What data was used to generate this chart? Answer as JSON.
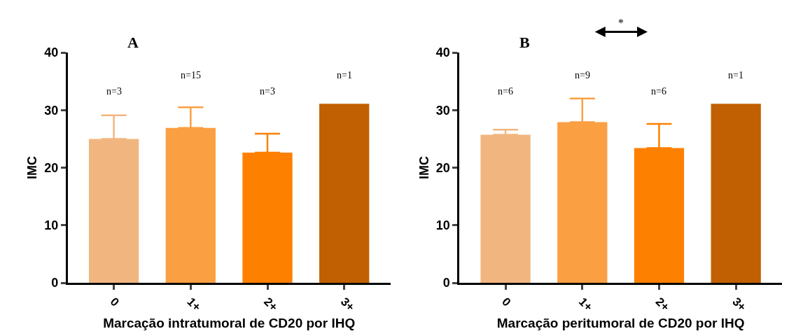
{
  "chart_data": [
    {
      "type": "bar",
      "title": null,
      "xlabel": "Marcação intratumoral de CD20 por IHQ",
      "ylabel": "IMC",
      "categories": [
        "0",
        "1+",
        "2+",
        "3+"
      ],
      "values": [
        25.0,
        26.9,
        22.6,
        31.1
      ],
      "colors": [
        "#f1b67f",
        "#fb9f43",
        "#fe8000",
        "#c06003"
      ],
      "errors": [
        [
          25.0,
          29.1
        ],
        [
          26.9,
          30.5
        ],
        [
          22.6,
          25.9
        ],
        null
      ],
      "ylim": [
        0,
        40
      ],
      "yticks": [
        0,
        10,
        20,
        30,
        40
      ],
      "annotations": [
        "A",
        "n=3",
        "n=15",
        "n=3",
        "n=1"
      ]
    },
    {
      "type": "bar",
      "xlabel": "Marcação peritumoral de CD20 por IHQ",
      "ylabel": "IMC",
      "categories": [
        "0",
        "1+",
        "2+",
        "3+"
      ],
      "values": [
        25.7,
        27.9,
        23.4,
        31.1
      ],
      "colors": [
        "#f1b67f",
        "#fb9f43",
        "#fe8000",
        "#c06003"
      ],
      "errors": [
        [
          25.7,
          26.6
        ],
        [
          27.9,
          32.0
        ],
        [
          23.4,
          27.6
        ],
        null
      ],
      "ylim": [
        0,
        40
      ],
      "yticks": [
        0,
        10,
        20,
        30,
        40
      ],
      "annotations": [
        "B",
        "*",
        "n=6",
        "n=9",
        "n=6",
        "n=1"
      ]
    }
  ]
}
